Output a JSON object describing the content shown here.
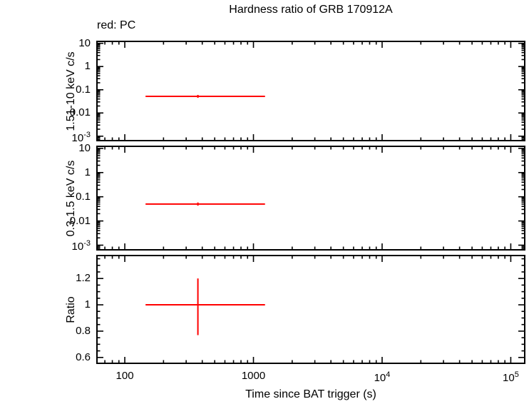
{
  "chart_data": {
    "type": "scatter",
    "title": "Hardness ratio of GRB 170912A",
    "legend": "red: PC",
    "xlabel": "Time since BAT trigger (s)",
    "xscale": "log",
    "xlim": [
      60,
      130000
    ],
    "xticks": {
      "values": [
        100,
        1000,
        10000,
        100000
      ],
      "labels": [
        "100",
        "1000",
        "10^4",
        "10^5"
      ]
    },
    "data_color": "#ff0000",
    "frame_color": "#000000",
    "panels": [
      {
        "name": "hard-band-count-rate",
        "ylabel": "1.51-10 keV c/s",
        "yscale": "log",
        "ylim": [
          0.0006,
          13
        ],
        "yticks": {
          "values": [
            10,
            1,
            0.1,
            0.01,
            0.001
          ],
          "labels": [
            "10",
            "1",
            "0.1",
            "0.01",
            "10^-3"
          ]
        },
        "points": [
          {
            "x": 370,
            "x_lo": 145,
            "x_hi": 1230,
            "y": 0.052,
            "y_lo": 0.045,
            "y_hi": 0.06
          }
        ]
      },
      {
        "name": "soft-band-count-rate",
        "ylabel": "0.3-1.5 keV c/s",
        "yscale": "log",
        "ylim": [
          0.0006,
          13
        ],
        "yticks": {
          "values": [
            10,
            1,
            0.1,
            0.01,
            0.001
          ],
          "labels": [
            "10",
            "1",
            "0.1",
            "0.01",
            "10^-3"
          ]
        },
        "points": [
          {
            "x": 370,
            "x_lo": 145,
            "x_hi": 1230,
            "y": 0.05,
            "y_lo": 0.043,
            "y_hi": 0.058
          }
        ]
      },
      {
        "name": "hardness-ratio",
        "ylabel": "Ratio",
        "yscale": "linear",
        "ylim": [
          0.55,
          1.38
        ],
        "yticks": {
          "values": [
            1.2,
            1,
            0.8,
            0.6
          ],
          "labels": [
            "1.2",
            "1",
            "0.8",
            "0.6"
          ]
        },
        "yminor_step": 0.05,
        "points": [
          {
            "x": 370,
            "x_lo": 145,
            "x_hi": 1230,
            "y": 1.0,
            "y_lo": 0.77,
            "y_hi": 1.2
          }
        ]
      }
    ]
  }
}
